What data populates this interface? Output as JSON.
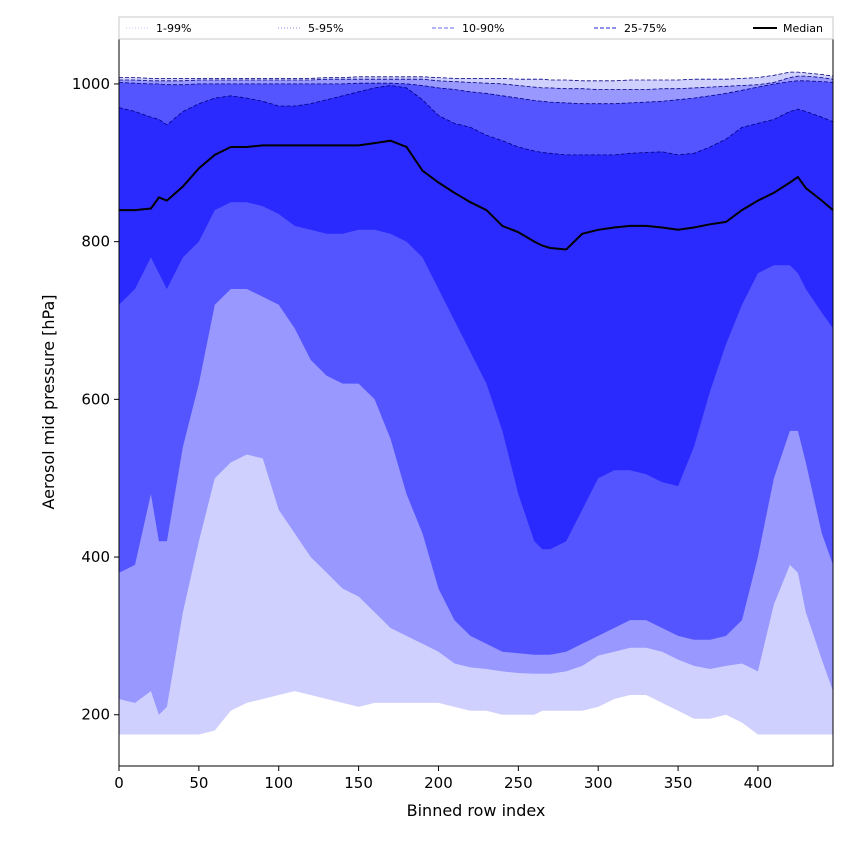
{
  "chart_data": {
    "type": "area",
    "title": "",
    "xlabel": "Binned row index",
    "ylabel": "Aerosol mid pressure [hPa]",
    "xlim": [
      0,
      447
    ],
    "ylim": [
      135,
      1057
    ],
    "x_ticks": [
      0,
      50,
      100,
      150,
      200,
      250,
      300,
      350,
      400
    ],
    "y_ticks": [
      200,
      400,
      600,
      800,
      1000
    ],
    "x": [
      0,
      10,
      20,
      25,
      30,
      40,
      50,
      60,
      70,
      80,
      90,
      100,
      110,
      120,
      130,
      140,
      150,
      160,
      170,
      180,
      190,
      200,
      210,
      220,
      230,
      240,
      250,
      260,
      265,
      270,
      280,
      290,
      300,
      310,
      320,
      330,
      340,
      350,
      360,
      370,
      380,
      390,
      400,
      410,
      420,
      425,
      430,
      440,
      447
    ],
    "series": [
      {
        "name": "1-99%",
        "lower": [
          175,
          175,
          175,
          175,
          175,
          175,
          175,
          180,
          205,
          215,
          220,
          225,
          230,
          225,
          220,
          215,
          210,
          215,
          215,
          215,
          215,
          215,
          210,
          205,
          205,
          200,
          200,
          200,
          205,
          205,
          205,
          205,
          210,
          220,
          225,
          225,
          215,
          205,
          195,
          195,
          200,
          190,
          175,
          175,
          175,
          175,
          175,
          175,
          175
        ],
        "upper": [
          1008,
          1008,
          1007,
          1007,
          1007,
          1007,
          1007,
          1007,
          1007,
          1007,
          1007,
          1007,
          1007,
          1007,
          1008,
          1008,
          1009,
          1009,
          1009,
          1009,
          1009,
          1008,
          1007,
          1007,
          1007,
          1007,
          1006,
          1006,
          1006,
          1005,
          1005,
          1004,
          1004,
          1004,
          1005,
          1005,
          1005,
          1005,
          1006,
          1006,
          1006,
          1007,
          1008,
          1011,
          1015,
          1015,
          1014,
          1012,
          1010
        ],
        "color": "#d0d0ff"
      },
      {
        "name": "5-95%",
        "lower": [
          220,
          215,
          230,
          200,
          210,
          330,
          420,
          500,
          520,
          530,
          525,
          460,
          430,
          400,
          380,
          360,
          350,
          330,
          310,
          300,
          290,
          280,
          265,
          260,
          258,
          255,
          253,
          252,
          252,
          252,
          255,
          262,
          275,
          280,
          285,
          285,
          280,
          270,
          262,
          258,
          262,
          265,
          255,
          340,
          390,
          380,
          330,
          270,
          230
        ],
        "upper": [
          1005,
          1005,
          1004,
          1004,
          1004,
          1004,
          1005,
          1005,
          1005,
          1005,
          1005,
          1005,
          1005,
          1005,
          1006,
          1006,
          1006,
          1006,
          1006,
          1006,
          1006,
          1004,
          1003,
          1002,
          1001,
          1000,
          998,
          996,
          995,
          995,
          994,
          994,
          993,
          993,
          993,
          993,
          994,
          994,
          995,
          996,
          997,
          998,
          999,
          1002,
          1008,
          1010,
          1010,
          1008,
          1006
        ],
        "color": "#9898ff"
      },
      {
        "name": "10-90%",
        "lower": [
          380,
          390,
          480,
          420,
          420,
          540,
          620,
          720,
          740,
          740,
          730,
          720,
          690,
          650,
          630,
          620,
          620,
          600,
          550,
          480,
          430,
          360,
          320,
          300,
          290,
          280,
          278,
          276,
          276,
          276,
          280,
          290,
          300,
          310,
          320,
          320,
          310,
          300,
          295,
          295,
          300,
          320,
          400,
          500,
          560,
          560,
          520,
          430,
          390
        ],
        "upper": [
          1002,
          1001,
          1000,
          1000,
          999,
          999,
          1000,
          1000,
          1000,
          1000,
          1000,
          1000,
          1000,
          1000,
          1000,
          1000,
          1001,
          1001,
          1001,
          1000,
          998,
          995,
          993,
          990,
          988,
          985,
          982,
          979,
          978,
          977,
          976,
          975,
          975,
          975,
          976,
          977,
          978,
          980,
          982,
          985,
          988,
          992,
          996,
          1000,
          1003,
          1004,
          1004,
          1003,
          1002
        ],
        "color": "#5555ff"
      },
      {
        "name": "25-75%",
        "lower": [
          720,
          740,
          780,
          760,
          740,
          780,
          800,
          840,
          850,
          850,
          845,
          835,
          820,
          815,
          810,
          810,
          815,
          815,
          810,
          800,
          780,
          740,
          700,
          660,
          620,
          560,
          480,
          420,
          410,
          410,
          420,
          460,
          500,
          510,
          510,
          505,
          495,
          490,
          540,
          610,
          670,
          720,
          760,
          770,
          770,
          760,
          740,
          710,
          690
        ],
        "upper": [
          970,
          965,
          958,
          955,
          948,
          965,
          975,
          982,
          985,
          982,
          978,
          972,
          972,
          975,
          980,
          985,
          990,
          995,
          998,
          995,
          980,
          960,
          950,
          945,
          935,
          928,
          920,
          915,
          913,
          912,
          910,
          910,
          910,
          910,
          912,
          913,
          914,
          910,
          912,
          920,
          930,
          945,
          950,
          955,
          965,
          968,
          965,
          958,
          952
        ],
        "color": "#2a2aff"
      }
    ],
    "median": {
      "name": "Median",
      "values": [
        840,
        840,
        842,
        856,
        852,
        870,
        893,
        910,
        920,
        920,
        922,
        922,
        922,
        922,
        922,
        922,
        922,
        925,
        928,
        920,
        890,
        875,
        862,
        850,
        840,
        820,
        812,
        800,
        795,
        792,
        790,
        810,
        815,
        818,
        820,
        820,
        818,
        815,
        818,
        822,
        825,
        840,
        852,
        862,
        875,
        882,
        868,
        852,
        840
      ],
      "color": "#000000"
    },
    "legend": {
      "position": "top",
      "entries": [
        {
          "label": "1-99%",
          "style": "dotted",
          "color": "#c6c6f4"
        },
        {
          "label": "5-95%",
          "style": "dotted",
          "color": "#8888dd"
        },
        {
          "label": "10-90%",
          "style": "dashed",
          "color": "#8888ee"
        },
        {
          "label": "25-75%",
          "style": "dashed",
          "color": "#5050e0"
        },
        {
          "label": "Median",
          "style": "solid",
          "color": "#000000"
        }
      ]
    }
  }
}
